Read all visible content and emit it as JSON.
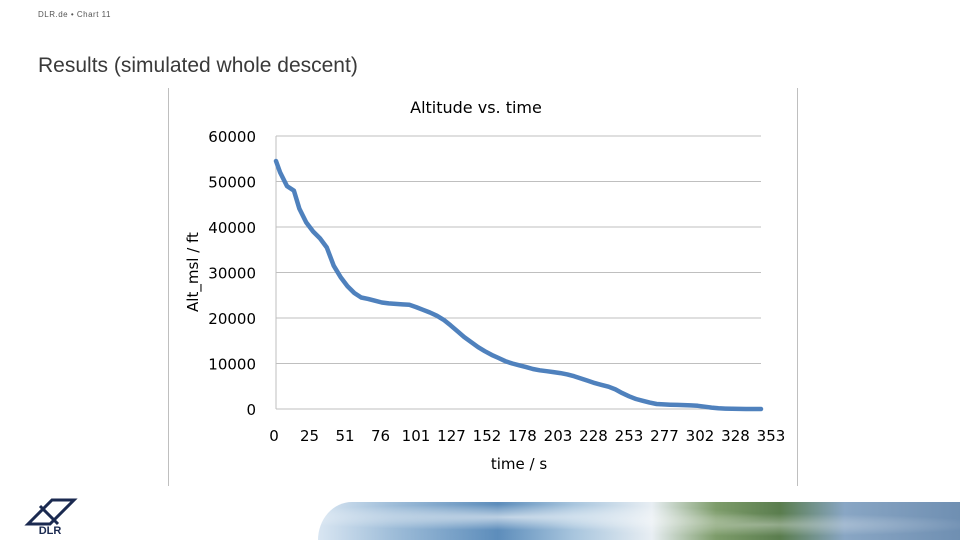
{
  "header": {
    "meta": "DLR.de  •  Chart 11",
    "title": "Results (simulated whole descent)"
  },
  "footer": {
    "logo_text": "DLR"
  },
  "colors": {
    "series": "#4f81bd",
    "grid": "#bfbfbf",
    "axis_text": "#000000"
  },
  "chart_data": {
    "type": "line",
    "title": "Altitude vs. time",
    "xlabel": "time / s",
    "ylabel": "Alt_msl / ft",
    "x_tick_labels": [
      "0",
      "25",
      "51",
      "76",
      "101",
      "127",
      "152",
      "178",
      "203",
      "228",
      "253",
      "277",
      "302",
      "328",
      "353"
    ],
    "y_tick_labels": [
      "0",
      "10000",
      "20000",
      "30000",
      "40000",
      "50000",
      "60000"
    ],
    "xlim": [
      0,
      353
    ],
    "ylim": [
      0,
      60000
    ],
    "grid": "horizontal",
    "legend": "none",
    "series": [
      {
        "x": [
          0,
          3,
          8,
          13,
          17,
          22,
          27,
          32,
          37,
          42,
          47,
          52,
          57,
          62,
          67,
          72,
          77,
          82,
          87,
          92,
          97,
          102,
          107,
          112,
          117,
          122,
          127,
          132,
          137,
          142,
          147,
          152,
          157,
          162,
          167,
          172,
          177,
          182,
          187,
          192,
          197,
          202,
          207,
          212,
          217,
          222,
          227,
          232,
          237,
          242,
          247,
          252,
          257,
          262,
          267,
          272,
          277,
          282,
          287,
          292,
          297,
          302,
          307,
          312,
          317,
          322,
          327,
          332,
          337,
          342,
          347,
          353
        ],
        "y": [
          54500,
          52000,
          49000,
          48000,
          44000,
          41000,
          39000,
          37500,
          35500,
          31500,
          29000,
          27000,
          25500,
          24500,
          24200,
          23800,
          23400,
          23200,
          23100,
          23000,
          22900,
          22400,
          21800,
          21200,
          20500,
          19600,
          18400,
          17100,
          15800,
          14700,
          13600,
          12700,
          11900,
          11200,
          10500,
          10000,
          9600,
          9200,
          8800,
          8500,
          8300,
          8100,
          7900,
          7600,
          7200,
          6700,
          6200,
          5700,
          5300,
          4900,
          4300,
          3500,
          2800,
          2200,
          1800,
          1400,
          1100,
          1000,
          950,
          900,
          850,
          800,
          700,
          500,
          300,
          150,
          80,
          40,
          20,
          10,
          5,
          0
        ]
      }
    ]
  }
}
